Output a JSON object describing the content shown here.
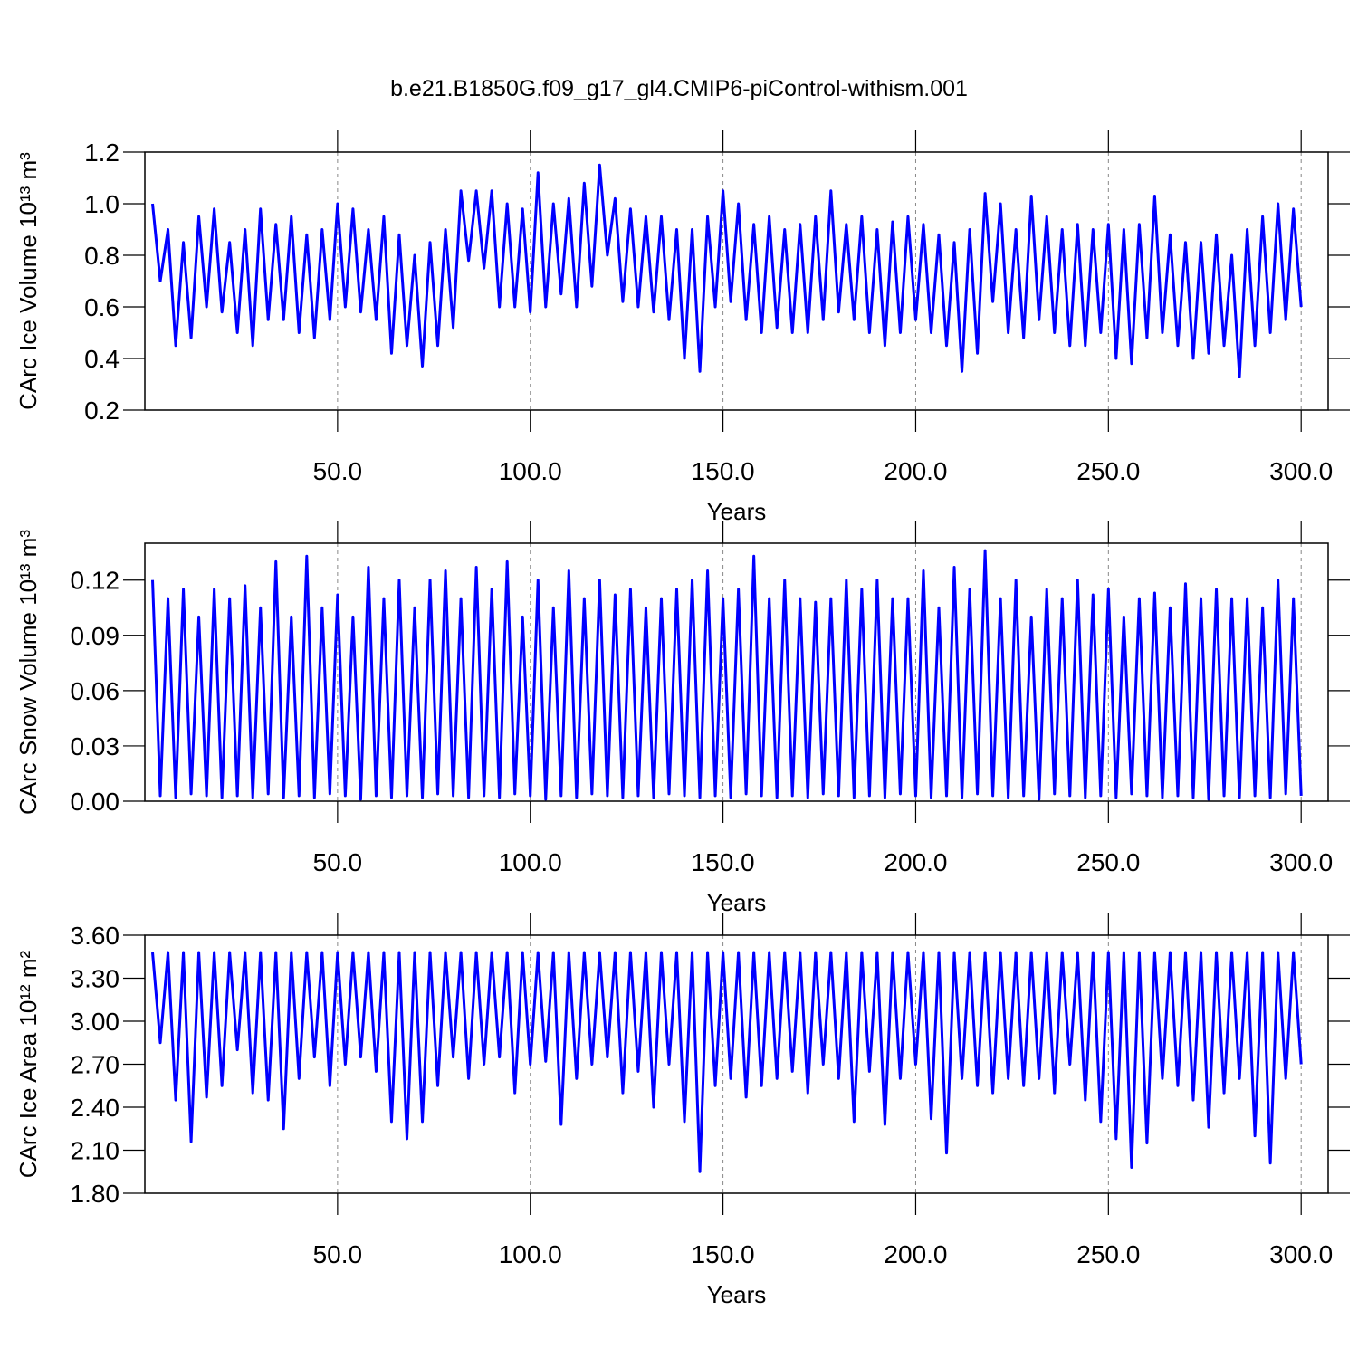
{
  "chart_data": [
    {
      "type": "line",
      "title": "b.e21.B1850G.f09_g17_gl4.CMIP6-piControl-withism.001",
      "x_label": "Years",
      "y_label": "CArc Ice Volume 10¹³ m³",
      "color": "#0000ff",
      "grid": true,
      "xlim": [
        0,
        307
      ],
      "xticks": [
        {
          "value": 50,
          "label": "50.0"
        },
        {
          "value": 100,
          "label": "100.0"
        },
        {
          "value": 150,
          "label": "150.0"
        },
        {
          "value": 200,
          "label": "200.0"
        },
        {
          "value": 250,
          "label": "250.0"
        },
        {
          "value": 300,
          "label": "300.0"
        }
      ],
      "ylim": [
        0.2,
        1.2
      ],
      "yticks": [
        0.2,
        0.4,
        0.6,
        0.8,
        {
          "value": 1,
          "label": "1.0"
        },
        1.2
      ],
      "x": [
        2,
        4,
        6,
        8,
        10,
        12,
        14,
        16,
        18,
        20,
        22,
        24,
        26,
        28,
        30,
        32,
        34,
        36,
        38,
        40,
        42,
        44,
        46,
        48,
        50,
        52,
        54,
        56,
        58,
        60,
        62,
        64,
        66,
        68,
        70,
        72,
        74,
        76,
        78,
        80,
        82,
        84,
        86,
        88,
        90,
        92,
        94,
        96,
        98,
        100,
        102,
        104,
        106,
        108,
        110,
        112,
        114,
        116,
        118,
        120,
        122,
        124,
        126,
        128,
        130,
        132,
        134,
        136,
        138,
        140,
        142,
        144,
        146,
        148,
        150,
        152,
        154,
        156,
        158,
        160,
        162,
        164,
        166,
        168,
        170,
        172,
        174,
        176,
        178,
        180,
        182,
        184,
        186,
        188,
        190,
        192,
        194,
        196,
        198,
        200,
        202,
        204,
        206,
        208,
        210,
        212,
        214,
        216,
        218,
        220,
        222,
        224,
        226,
        228,
        230,
        232,
        234,
        236,
        238,
        240,
        242,
        244,
        246,
        248,
        250,
        252,
        254,
        256,
        258,
        260,
        262,
        264,
        266,
        268,
        270,
        272,
        274,
        276,
        278,
        280,
        282,
        284,
        286,
        288,
        290,
        292,
        294,
        296,
        298,
        300
      ],
      "values": [
        1.0,
        0.7,
        0.9,
        0.45,
        0.85,
        0.48,
        0.95,
        0.6,
        0.98,
        0.58,
        0.85,
        0.5,
        0.9,
        0.45,
        0.98,
        0.55,
        0.92,
        0.55,
        0.95,
        0.5,
        0.88,
        0.48,
        0.9,
        0.55,
        1.0,
        0.6,
        0.98,
        0.58,
        0.9,
        0.55,
        0.95,
        0.42,
        0.88,
        0.45,
        0.8,
        0.37,
        0.85,
        0.45,
        0.9,
        0.52,
        1.05,
        0.78,
        1.05,
        0.75,
        1.05,
        0.6,
        1.0,
        0.6,
        0.98,
        0.58,
        1.12,
        0.6,
        1.0,
        0.65,
        1.02,
        0.6,
        1.08,
        0.68,
        1.15,
        0.8,
        1.02,
        0.62,
        0.98,
        0.6,
        0.95,
        0.58,
        0.95,
        0.55,
        0.9,
        0.4,
        0.9,
        0.35,
        0.95,
        0.6,
        1.05,
        0.62,
        1.0,
        0.55,
        0.92,
        0.5,
        0.95,
        0.52,
        0.9,
        0.5,
        0.92,
        0.5,
        0.95,
        0.55,
        1.05,
        0.58,
        0.92,
        0.55,
        0.95,
        0.5,
        0.9,
        0.45,
        0.93,
        0.5,
        0.95,
        0.55,
        0.92,
        0.5,
        0.88,
        0.45,
        0.85,
        0.35,
        0.9,
        0.42,
        1.04,
        0.62,
        1.0,
        0.5,
        0.9,
        0.48,
        1.03,
        0.55,
        0.95,
        0.5,
        0.9,
        0.45,
        0.92,
        0.45,
        0.9,
        0.5,
        0.92,
        0.4,
        0.9,
        0.38,
        0.92,
        0.48,
        1.03,
        0.5,
        0.88,
        0.45,
        0.85,
        0.4,
        0.85,
        0.42,
        0.88,
        0.45,
        0.8,
        0.33,
        0.9,
        0.45,
        0.95,
        0.5,
        1.0,
        0.55,
        0.98,
        0.6
      ]
    },
    {
      "type": "line",
      "x_label": "Years",
      "y_label": "CArc Snow Volume 10¹³ m³",
      "color": "#0000ff",
      "grid": true,
      "xlim": [
        0,
        307
      ],
      "xticks": [
        {
          "value": 50,
          "label": "50.0"
        },
        {
          "value": 100,
          "label": "100.0"
        },
        {
          "value": 150,
          "label": "150.0"
        },
        {
          "value": 200,
          "label": "200.0"
        },
        {
          "value": 250,
          "label": "250.0"
        },
        {
          "value": 300,
          "label": "300.0"
        }
      ],
      "ylim": [
        0,
        0.14
      ],
      "yticks": [
        {
          "value": 0,
          "label": "0.00"
        },
        0.03,
        0.06,
        0.09,
        0.12
      ],
      "x": [
        2,
        4,
        6,
        8,
        10,
        12,
        14,
        16,
        18,
        20,
        22,
        24,
        26,
        28,
        30,
        32,
        34,
        36,
        38,
        40,
        42,
        44,
        46,
        48,
        50,
        52,
        54,
        56,
        58,
        60,
        62,
        64,
        66,
        68,
        70,
        72,
        74,
        76,
        78,
        80,
        82,
        84,
        86,
        88,
        90,
        92,
        94,
        96,
        98,
        100,
        102,
        104,
        106,
        108,
        110,
        112,
        114,
        116,
        118,
        120,
        122,
        124,
        126,
        128,
        130,
        132,
        134,
        136,
        138,
        140,
        142,
        144,
        146,
        148,
        150,
        152,
        154,
        156,
        158,
        160,
        162,
        164,
        166,
        168,
        170,
        172,
        174,
        176,
        178,
        180,
        182,
        184,
        186,
        188,
        190,
        192,
        194,
        196,
        198,
        200,
        202,
        204,
        206,
        208,
        210,
        212,
        214,
        216,
        218,
        220,
        222,
        224,
        226,
        228,
        230,
        232,
        234,
        236,
        238,
        240,
        242,
        244,
        246,
        248,
        250,
        252,
        254,
        256,
        258,
        260,
        262,
        264,
        266,
        268,
        270,
        272,
        274,
        276,
        278,
        280,
        282,
        284,
        286,
        288,
        290,
        292,
        294,
        296,
        298,
        300
      ],
      "values": [
        0.12,
        0.003,
        0.11,
        0.002,
        0.115,
        0.004,
        0.1,
        0.003,
        0.115,
        0.002,
        0.11,
        0.003,
        0.117,
        0.002,
        0.105,
        0.004,
        0.13,
        0.002,
        0.1,
        0.003,
        0.133,
        0.002,
        0.105,
        0.004,
        0.112,
        0.003,
        0.1,
        0.001,
        0.127,
        0.003,
        0.11,
        0.002,
        0.12,
        0.003,
        0.105,
        0.002,
        0.12,
        0.004,
        0.125,
        0.003,
        0.11,
        0.002,
        0.127,
        0.003,
        0.115,
        0.002,
        0.13,
        0.004,
        0.1,
        0.003,
        0.12,
        0.001,
        0.105,
        0.003,
        0.125,
        0.002,
        0.11,
        0.004,
        0.12,
        0.003,
        0.112,
        0.002,
        0.115,
        0.003,
        0.105,
        0.002,
        0.11,
        0.004,
        0.115,
        0.003,
        0.12,
        0.002,
        0.125,
        0.003,
        0.11,
        0.002,
        0.115,
        0.004,
        0.133,
        0.003,
        0.11,
        0.002,
        0.12,
        0.003,
        0.11,
        0.002,
        0.108,
        0.004,
        0.11,
        0.003,
        0.12,
        0.002,
        0.115,
        0.003,
        0.12,
        0.002,
        0.11,
        0.004,
        0.11,
        0.003,
        0.125,
        0.002,
        0.105,
        0.003,
        0.127,
        0.002,
        0.115,
        0.004,
        0.136,
        0.003,
        0.11,
        0.002,
        0.12,
        0.003,
        0.1,
        0.001,
        0.115,
        0.004,
        0.11,
        0.003,
        0.12,
        0.002,
        0.112,
        0.003,
        0.115,
        0.002,
        0.1,
        0.004,
        0.11,
        0.003,
        0.113,
        0.002,
        0.105,
        0.003,
        0.118,
        0.002,
        0.11,
        0.001,
        0.115,
        0.003,
        0.11,
        0.002,
        0.11,
        0.003,
        0.105,
        0.002,
        0.12,
        0.004,
        0.11,
        0.003
      ]
    },
    {
      "type": "line",
      "x_label": "Years",
      "y_label": "CArc Ice Area 10¹² m²",
      "color": "#0000ff",
      "grid": true,
      "xlim": [
        0,
        307
      ],
      "xticks": [
        {
          "value": 50,
          "label": "50.0"
        },
        {
          "value": 100,
          "label": "100.0"
        },
        {
          "value": 150,
          "label": "150.0"
        },
        {
          "value": 200,
          "label": "200.0"
        },
        {
          "value": 250,
          "label": "250.0"
        },
        {
          "value": 300,
          "label": "300.0"
        }
      ],
      "ylim": [
        1.8,
        3.6
      ],
      "yticks": [
        {
          "value": 1.8,
          "label": "1.80"
        },
        {
          "value": 2.1,
          "label": "2.10"
        },
        {
          "value": 2.4,
          "label": "2.40"
        },
        {
          "value": 2.7,
          "label": "2.70"
        },
        {
          "value": 3.0,
          "label": "3.00"
        },
        {
          "value": 3.3,
          "label": "3.30"
        },
        {
          "value": 3.6,
          "label": "3.60"
        }
      ],
      "x": [
        2,
        4,
        6,
        8,
        10,
        12,
        14,
        16,
        18,
        20,
        22,
        24,
        26,
        28,
        30,
        32,
        34,
        36,
        38,
        40,
        42,
        44,
        46,
        48,
        50,
        52,
        54,
        56,
        58,
        60,
        62,
        64,
        66,
        68,
        70,
        72,
        74,
        76,
        78,
        80,
        82,
        84,
        86,
        88,
        90,
        92,
        94,
        96,
        98,
        100,
        102,
        104,
        106,
        108,
        110,
        112,
        114,
        116,
        118,
        120,
        122,
        124,
        126,
        128,
        130,
        132,
        134,
        136,
        138,
        140,
        142,
        144,
        146,
        148,
        150,
        152,
        154,
        156,
        158,
        160,
        162,
        164,
        166,
        168,
        170,
        172,
        174,
        176,
        178,
        180,
        182,
        184,
        186,
        188,
        190,
        192,
        194,
        196,
        198,
        200,
        202,
        204,
        206,
        208,
        210,
        212,
        214,
        216,
        218,
        220,
        222,
        224,
        226,
        228,
        230,
        232,
        234,
        236,
        238,
        240,
        242,
        244,
        246,
        248,
        250,
        252,
        254,
        256,
        258,
        260,
        262,
        264,
        266,
        268,
        270,
        272,
        274,
        276,
        278,
        280,
        282,
        284,
        286,
        288,
        290,
        292,
        294,
        296,
        298,
        300
      ],
      "values": [
        3.48,
        2.85,
        3.48,
        2.45,
        3.48,
        2.16,
        3.48,
        2.47,
        3.48,
        2.55,
        3.48,
        2.8,
        3.48,
        2.5,
        3.48,
        2.45,
        3.48,
        2.25,
        3.48,
        2.6,
        3.48,
        2.75,
        3.48,
        2.55,
        3.48,
        2.7,
        3.48,
        2.75,
        3.48,
        2.65,
        3.48,
        2.3,
        3.48,
        2.18,
        3.48,
        2.3,
        3.48,
        2.55,
        3.48,
        2.75,
        3.48,
        2.6,
        3.48,
        2.7,
        3.48,
        2.75,
        3.48,
        2.5,
        3.48,
        2.7,
        3.48,
        2.72,
        3.48,
        2.28,
        3.48,
        2.6,
        3.48,
        2.7,
        3.48,
        2.75,
        3.48,
        2.5,
        3.48,
        2.65,
        3.48,
        2.4,
        3.48,
        2.7,
        3.48,
        2.3,
        3.48,
        1.95,
        3.48,
        2.55,
        3.48,
        2.6,
        3.48,
        2.47,
        3.48,
        2.55,
        3.48,
        2.6,
        3.48,
        2.65,
        3.48,
        2.5,
        3.48,
        2.7,
        3.48,
        2.6,
        3.48,
        2.3,
        3.48,
        2.65,
        3.48,
        2.28,
        3.48,
        2.6,
        3.48,
        2.7,
        3.48,
        2.32,
        3.48,
        2.08,
        3.48,
        2.6,
        3.48,
        2.55,
        3.48,
        2.5,
        3.48,
        2.6,
        3.48,
        2.55,
        3.48,
        2.6,
        3.48,
        2.5,
        3.48,
        2.7,
        3.48,
        2.45,
        3.48,
        2.3,
        3.48,
        2.18,
        3.48,
        1.98,
        3.48,
        2.15,
        3.48,
        2.6,
        3.48,
        2.55,
        3.48,
        2.45,
        3.48,
        2.26,
        3.48,
        2.5,
        3.48,
        2.6,
        3.48,
        2.2,
        3.48,
        2.01,
        3.48,
        2.6,
        3.48,
        2.7
      ]
    }
  ]
}
